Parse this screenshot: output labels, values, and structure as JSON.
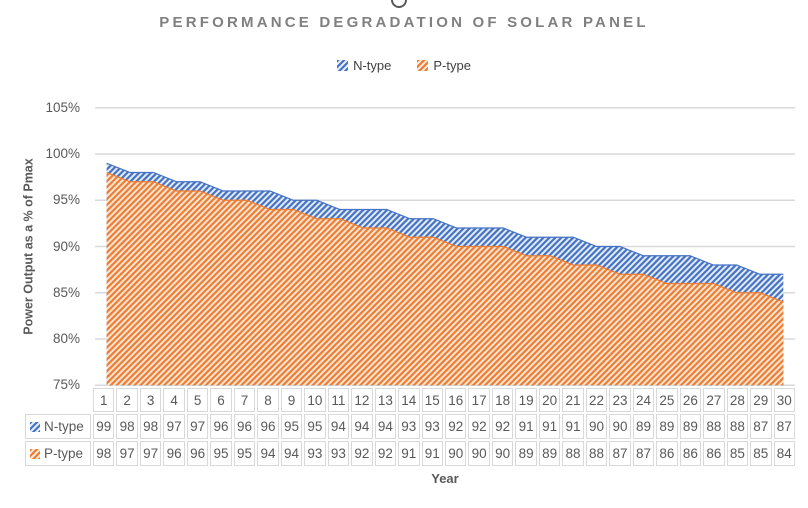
{
  "title": "PERFORMANCE DEGRADATION OF SOLAR PANEL",
  "axes": {
    "y_title": "Power Output as a % of Pmax",
    "x_title": "Year",
    "y_ticks": [
      "105%",
      "100%",
      "95%",
      "90%",
      "85%",
      "80%",
      "75%"
    ]
  },
  "colors": {
    "gridline": "#D9D9D9",
    "table_border": "#D9D9D9",
    "text": "#595959",
    "title_text": "#808080",
    "n_type": "#4472C4",
    "n_type_light": "#E4ECF7",
    "p_type": "#ED7D31",
    "p_type_light": "#FBE6D7"
  },
  "chart_data": {
    "type": "area",
    "title": "PERFORMANCE DEGRADATION OF SOLAR PANEL",
    "xlabel": "Year",
    "ylabel": "Power Output as a % of Pmax",
    "ylim": [
      75,
      105
    ],
    "ytick_step": 5,
    "grid": true,
    "legend_position": "top",
    "pattern": "diagonal-hatch",
    "data_table": true,
    "categories": [
      1,
      2,
      3,
      4,
      5,
      6,
      7,
      8,
      9,
      10,
      11,
      12,
      13,
      14,
      15,
      16,
      17,
      18,
      19,
      20,
      21,
      22,
      23,
      24,
      25,
      26,
      27,
      28,
      29,
      30
    ],
    "series": [
      {
        "name": "N-type",
        "color": "#4472C4",
        "bg": "#E4ECF7",
        "values": [
          99,
          98,
          98,
          97,
          97,
          96,
          96,
          96,
          95,
          95,
          94,
          94,
          94,
          93,
          93,
          92,
          92,
          92,
          91,
          91,
          91,
          90,
          90,
          89,
          89,
          89,
          88,
          88,
          87,
          87
        ]
      },
      {
        "name": "P-type",
        "color": "#ED7D31",
        "bg": "#FBE6D7",
        "values": [
          98,
          97,
          97,
          96,
          96,
          95,
          95,
          94,
          94,
          93,
          93,
          92,
          92,
          91,
          91,
          90,
          90,
          90,
          89,
          89,
          88,
          88,
          87,
          87,
          86,
          86,
          86,
          85,
          85,
          84
        ]
      }
    ]
  }
}
